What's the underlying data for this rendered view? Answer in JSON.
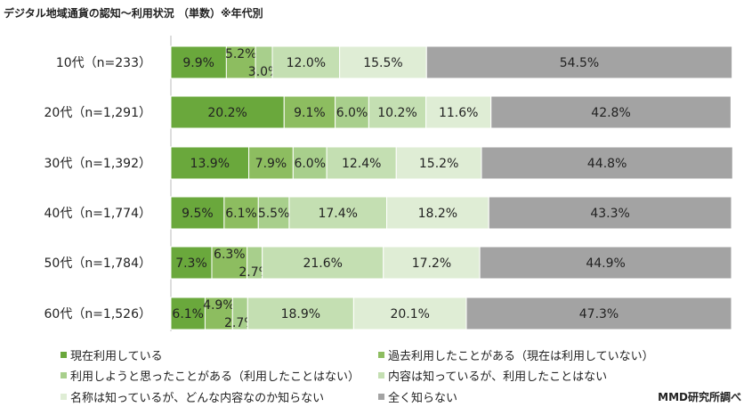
{
  "chart_data": {
    "type": "bar",
    "orientation": "horizontal",
    "stacked": true,
    "title": "デジタル地域通貨の認知～利用状況 （単数）※年代別",
    "categories": [
      "10代（n=233）",
      "20代（n=1,291）",
      "30代（n=1,392）",
      "40代（n=1,774）",
      "50代（n=1,784）",
      "60代（n=1,526）"
    ],
    "series": [
      {
        "name": "現在利用している",
        "color": "#6aa83c",
        "values": [
          9.9,
          20.2,
          13.9,
          9.5,
          7.3,
          6.1
        ]
      },
      {
        "name": "過去利用したことがある（現在は利用していない）",
        "color": "#8dbd60",
        "values": [
          5.2,
          9.1,
          7.9,
          6.1,
          6.3,
          4.9
        ]
      },
      {
        "name": "利用しようと思ったことがある（利用したことはない）",
        "color": "#a8cf8c",
        "values": [
          3.0,
          6.0,
          6.0,
          5.5,
          2.7,
          2.7
        ]
      },
      {
        "name": "内容は知っているが、利用したことはない",
        "color": "#c4dfb2",
        "values": [
          12.0,
          10.2,
          12.4,
          17.4,
          21.6,
          18.9
        ]
      },
      {
        "name": "名称は知っているが、どんな内容なのか知らない",
        "color": "#dfedd5",
        "values": [
          15.5,
          11.6,
          15.2,
          18.2,
          17.2,
          20.1
        ]
      },
      {
        "name": "全く知らない",
        "color": "#a3a3a3",
        "values": [
          54.5,
          42.8,
          44.8,
          43.3,
          44.9,
          47.3
        ]
      }
    ],
    "xlim": [
      0,
      100
    ],
    "legend_placement": "bottom"
  },
  "source": "MMD研究所調べ"
}
